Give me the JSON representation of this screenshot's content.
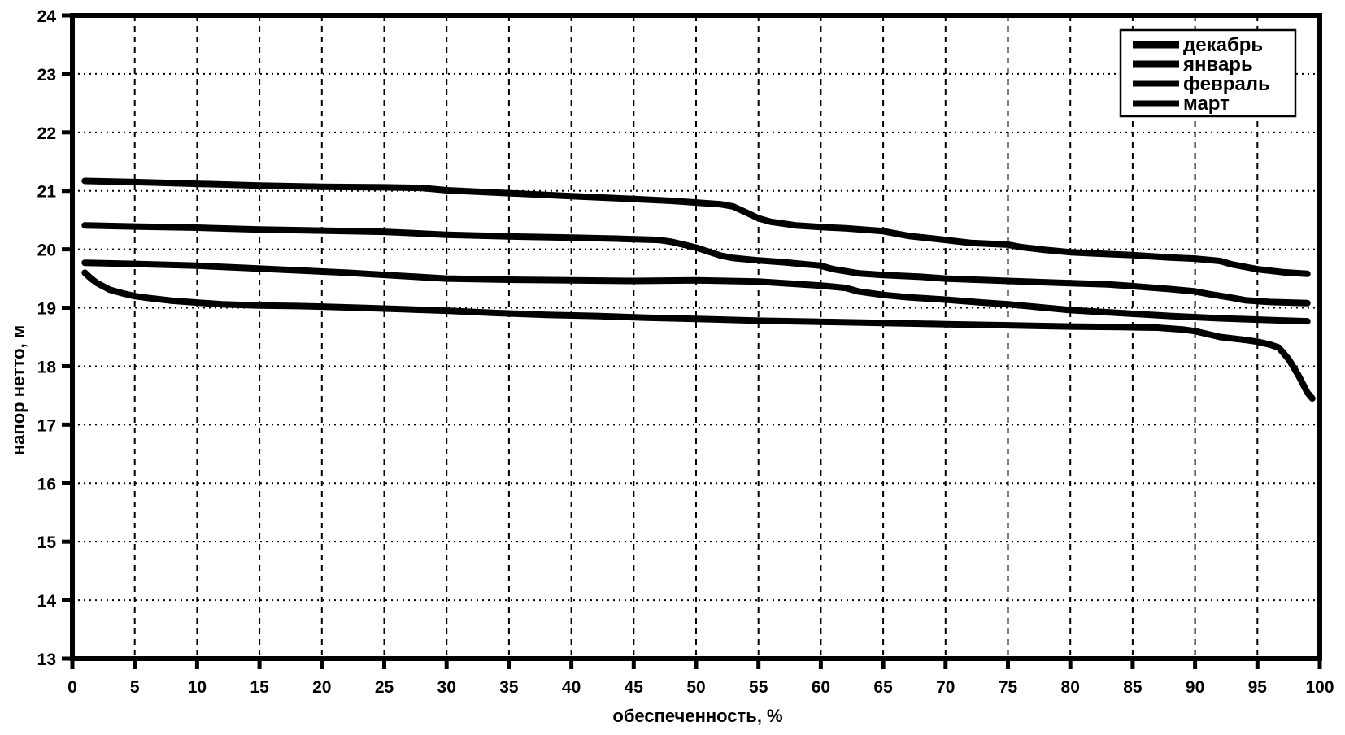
{
  "figure": {
    "background": "#ffffff",
    "ink_color": "#000000"
  },
  "chart_data": {
    "type": "line",
    "title": "",
    "xlabel": "обеспеченность, %",
    "ylabel": "напор нетто, м",
    "xlim": [
      0,
      100
    ],
    "ylim": [
      13,
      24
    ],
    "x_tick_step": 5,
    "y_tick_step": 1,
    "x_tick_labels": [
      "0",
      "5",
      "10",
      "15",
      "20",
      "25",
      "30",
      "35",
      "40",
      "45",
      "50",
      "55",
      "60",
      "65",
      "70",
      "75",
      "80",
      "85",
      "90",
      "95",
      "100"
    ],
    "y_tick_labels": [
      "13",
      "14",
      "15",
      "16",
      "17",
      "18",
      "19",
      "20",
      "21",
      "22",
      "23",
      "24"
    ],
    "grid": "both",
    "grid_style": {
      "horizontal": "dotted",
      "vertical": "dashed"
    },
    "legend_position": "top-right",
    "line_color": "#000000",
    "series": [
      {
        "name": "декабрь",
        "points": [
          [
            1,
            21.17
          ],
          [
            5,
            21.15
          ],
          [
            10,
            21.12
          ],
          [
            15,
            21.09
          ],
          [
            20,
            21.07
          ],
          [
            25,
            21.06
          ],
          [
            28,
            21.05
          ],
          [
            30,
            21.01
          ],
          [
            35,
            20.96
          ],
          [
            40,
            20.91
          ],
          [
            45,
            20.86
          ],
          [
            48,
            20.83
          ],
          [
            50,
            20.8
          ],
          [
            52,
            20.77
          ],
          [
            53,
            20.73
          ],
          [
            54,
            20.63
          ],
          [
            55,
            20.53
          ],
          [
            56,
            20.47
          ],
          [
            58,
            20.41
          ],
          [
            60,
            20.38
          ],
          [
            62,
            20.36
          ],
          [
            65,
            20.31
          ],
          [
            67,
            20.23
          ],
          [
            70,
            20.16
          ],
          [
            72,
            20.11
          ],
          [
            75,
            20.08
          ],
          [
            76,
            20.04
          ],
          [
            78,
            19.99
          ],
          [
            80,
            19.95
          ],
          [
            82,
            19.93
          ],
          [
            85,
            19.9
          ],
          [
            88,
            19.86
          ],
          [
            90,
            19.84
          ],
          [
            92,
            19.8
          ],
          [
            93,
            19.74
          ],
          [
            95,
            19.66
          ],
          [
            97,
            19.61
          ],
          [
            99,
            19.58
          ]
        ]
      },
      {
        "name": "январь",
        "points": [
          [
            1,
            20.41
          ],
          [
            5,
            20.39
          ],
          [
            10,
            20.37
          ],
          [
            15,
            20.34
          ],
          [
            20,
            20.32
          ],
          [
            25,
            20.3
          ],
          [
            28,
            20.27
          ],
          [
            30,
            20.25
          ],
          [
            35,
            20.22
          ],
          [
            40,
            20.2
          ],
          [
            44,
            20.18
          ],
          [
            47,
            20.16
          ],
          [
            48,
            20.13
          ],
          [
            50,
            20.03
          ],
          [
            51,
            19.96
          ],
          [
            52,
            19.89
          ],
          [
            53,
            19.85
          ],
          [
            55,
            19.81
          ],
          [
            57,
            19.78
          ],
          [
            60,
            19.72
          ],
          [
            61,
            19.66
          ],
          [
            63,
            19.59
          ],
          [
            65,
            19.56
          ],
          [
            68,
            19.53
          ],
          [
            70,
            19.5
          ],
          [
            75,
            19.46
          ],
          [
            80,
            19.42
          ],
          [
            83,
            19.4
          ],
          [
            85,
            19.37
          ],
          [
            88,
            19.32
          ],
          [
            90,
            19.28
          ],
          [
            91,
            19.24
          ],
          [
            93,
            19.17
          ],
          [
            94,
            19.13
          ],
          [
            96,
            19.1
          ],
          [
            99,
            19.08
          ]
        ]
      },
      {
        "name": "февраль",
        "points": [
          [
            1,
            19.77
          ],
          [
            5,
            19.75
          ],
          [
            10,
            19.72
          ],
          [
            14,
            19.68
          ],
          [
            18,
            19.64
          ],
          [
            22,
            19.6
          ],
          [
            26,
            19.55
          ],
          [
            30,
            19.5
          ],
          [
            35,
            19.48
          ],
          [
            40,
            19.47
          ],
          [
            45,
            19.46
          ],
          [
            50,
            19.47
          ],
          [
            55,
            19.45
          ],
          [
            57,
            19.42
          ],
          [
            60,
            19.38
          ],
          [
            62,
            19.34
          ],
          [
            63,
            19.28
          ],
          [
            65,
            19.22
          ],
          [
            67,
            19.18
          ],
          [
            70,
            19.14
          ],
          [
            73,
            19.09
          ],
          [
            75,
            19.06
          ],
          [
            78,
            19.0
          ],
          [
            80,
            18.96
          ],
          [
            84,
            18.91
          ],
          [
            88,
            18.86
          ],
          [
            92,
            18.82
          ],
          [
            96,
            18.79
          ],
          [
            99,
            18.77
          ]
        ]
      },
      {
        "name": "март",
        "points": [
          [
            1,
            19.6
          ],
          [
            1.5,
            19.5
          ],
          [
            2,
            19.42
          ],
          [
            3,
            19.31
          ],
          [
            4,
            19.25
          ],
          [
            5,
            19.2
          ],
          [
            6,
            19.17
          ],
          [
            8,
            19.12
          ],
          [
            10,
            19.09
          ],
          [
            12,
            19.06
          ],
          [
            15,
            19.04
          ],
          [
            18,
            19.03
          ],
          [
            20,
            19.02
          ],
          [
            23,
            19.0
          ],
          [
            26,
            18.98
          ],
          [
            30,
            18.95
          ],
          [
            34,
            18.91
          ],
          [
            38,
            18.88
          ],
          [
            42,
            18.86
          ],
          [
            46,
            18.83
          ],
          [
            50,
            18.81
          ],
          [
            55,
            18.78
          ],
          [
            60,
            18.76
          ],
          [
            65,
            18.74
          ],
          [
            70,
            18.72
          ],
          [
            75,
            18.7
          ],
          [
            80,
            18.68
          ],
          [
            84,
            18.67
          ],
          [
            87,
            18.66
          ],
          [
            89,
            18.63
          ],
          [
            90,
            18.6
          ],
          [
            91,
            18.55
          ],
          [
            92,
            18.5
          ],
          [
            94,
            18.45
          ],
          [
            95,
            18.42
          ],
          [
            96,
            18.37
          ],
          [
            96.7,
            18.32
          ],
          [
            97.5,
            18.12
          ],
          [
            98.3,
            17.84
          ],
          [
            99,
            17.55
          ],
          [
            99.4,
            17.45
          ]
        ]
      }
    ]
  }
}
